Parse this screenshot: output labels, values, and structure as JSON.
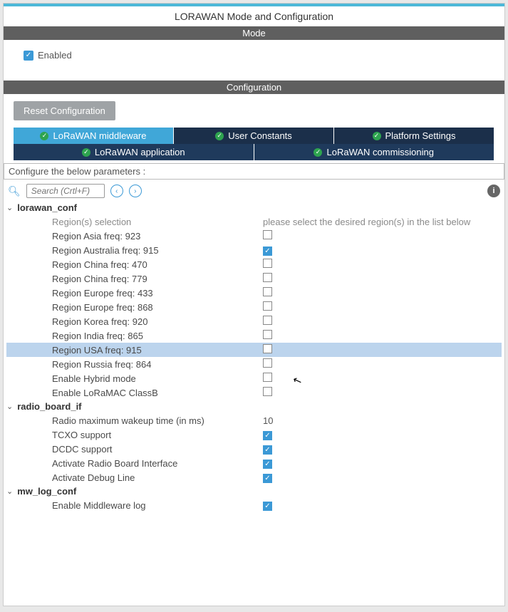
{
  "window": {
    "title": "LORAWAN Mode and Configuration"
  },
  "sections": {
    "mode": "Mode",
    "configuration": "Configuration"
  },
  "mode_panel": {
    "enabled_label": "Enabled",
    "enabled_checked": true
  },
  "buttons": {
    "reset": "Reset Configuration"
  },
  "tabs_top": [
    {
      "label": "LoRaWAN middleware",
      "active": true
    },
    {
      "label": "User Constants",
      "active": false
    },
    {
      "label": "Platform Settings",
      "active": false
    }
  ],
  "tabs_sub": [
    {
      "label": "LoRaWAN application"
    },
    {
      "label": "LoRaWAN commissioning"
    }
  ],
  "instruction": "Configure the below parameters :",
  "search": {
    "placeholder": "Search (Crtl+F)"
  },
  "groups": {
    "lorawan_conf": {
      "name": "lorawan_conf",
      "hint_label": "Region(s) selection",
      "hint_text": "please select the desired region(s) in the list below",
      "items": [
        {
          "label": "Region Asia freq: 923",
          "checked": false,
          "highlight": false
        },
        {
          "label": "Region Australia freq: 915",
          "checked": true,
          "highlight": false
        },
        {
          "label": "Region China freq: 470",
          "checked": false,
          "highlight": false
        },
        {
          "label": "Region China freq: 779",
          "checked": false,
          "highlight": false
        },
        {
          "label": "Region Europe freq: 433",
          "checked": false,
          "highlight": false
        },
        {
          "label": "Region Europe freq: 868",
          "checked": false,
          "highlight": false
        },
        {
          "label": "Region Korea freq: 920",
          "checked": false,
          "highlight": false
        },
        {
          "label": "Region India freq: 865",
          "checked": false,
          "highlight": false
        },
        {
          "label": "Region USA freq: 915",
          "checked": false,
          "highlight": true
        },
        {
          "label": "Region Russia freq: 864",
          "checked": false,
          "highlight": false
        },
        {
          "label": "Enable Hybrid mode",
          "checked": false,
          "highlight": false
        },
        {
          "label": "Enable LoRaMAC ClassB",
          "checked": false,
          "highlight": false
        }
      ]
    },
    "radio_board_if": {
      "name": "radio_board_if",
      "items": [
        {
          "label": "Radio maximum wakeup time (in ms)",
          "value": "10",
          "type": "number"
        },
        {
          "label": "TCXO support",
          "checked": true,
          "type": "bool"
        },
        {
          "label": "DCDC support",
          "checked": true,
          "type": "bool"
        },
        {
          "label": "Activate Radio Board Interface",
          "checked": true,
          "type": "bool"
        },
        {
          "label": "Activate Debug Line",
          "checked": true,
          "type": "bool"
        }
      ]
    },
    "mw_log_conf": {
      "name": "mw_log_conf",
      "items": [
        {
          "label": "Enable Middleware log",
          "checked": true,
          "type": "bool"
        }
      ]
    }
  },
  "colors": {
    "topbar": "#4db8d8",
    "section_bar": "#5f5f5f",
    "tab_active": "#40a7d8",
    "tab_dark": "#1b2f4a",
    "tab_sub": "#1f3a5c",
    "check": "#3b99d6",
    "highlight_row": "#bcd4ed"
  }
}
